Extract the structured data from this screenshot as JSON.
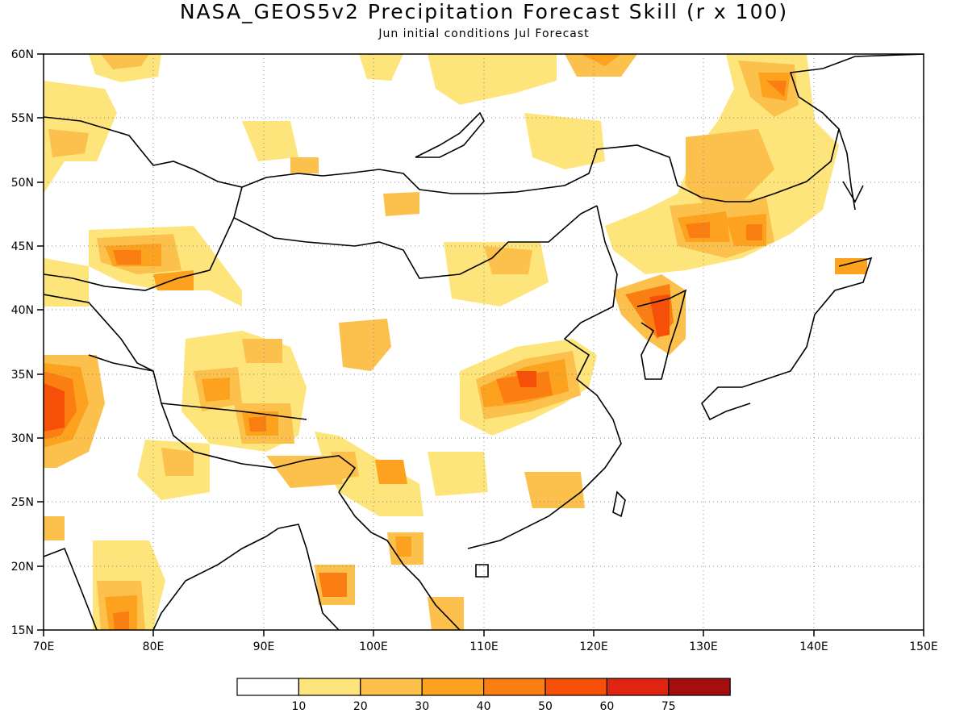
{
  "title": "NASA_GEOS5v2 Precipitation Forecast Skill (r x 100)",
  "subtitle": "Jun initial conditions  Jul Forecast",
  "map": {
    "lon_range": [
      70,
      150
    ],
    "lat_range": [
      15,
      60
    ],
    "lon_ticks": [
      "70E",
      "80E",
      "90E",
      "100E",
      "110E",
      "120E",
      "130E",
      "140E",
      "150E"
    ],
    "lat_ticks": [
      "60N",
      "55N",
      "50N",
      "45N",
      "40N",
      "35N",
      "30N",
      "25N",
      "20N",
      "15N"
    ],
    "grid": "dotted"
  },
  "legend": {
    "labels": [
      "10",
      "20",
      "30",
      "40",
      "50",
      "60",
      "75"
    ],
    "colors": [
      "#ffffff",
      "#fee57b",
      "#fcc04c",
      "#fca21f",
      "#fb7e12",
      "#f54f08",
      "#e02412",
      "#a50e0e"
    ]
  },
  "skill_areas": [
    {
      "lon": 77.5,
      "lat": 44.2,
      "level": 5
    },
    {
      "lon": 71.5,
      "lat": 32.5,
      "level": 6
    },
    {
      "lon": 77.8,
      "lat": 16.0,
      "level": 4
    },
    {
      "lon": 113.5,
      "lat": 34.2,
      "level": 5
    },
    {
      "lon": 125.5,
      "lat": 40.5,
      "level": 6
    },
    {
      "lon": 131.5,
      "lat": 45.8,
      "level": 5
    },
    {
      "lon": 135.0,
      "lat": 57.0,
      "level": 5
    },
    {
      "lon": 97.5,
      "lat": 17.5,
      "level": 5
    },
    {
      "lon": 88.5,
      "lat": 31.2,
      "level": 5
    }
  ]
}
